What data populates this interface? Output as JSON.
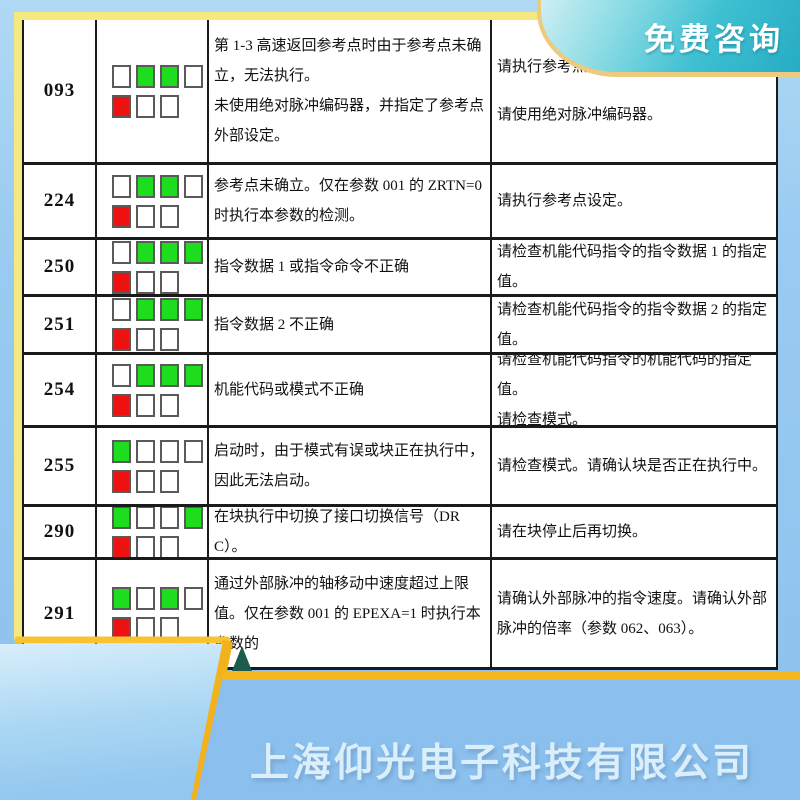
{
  "page": {
    "badge": {
      "label": "免费咨询"
    },
    "footer": {
      "company": "上海仰光电子科技有限公司"
    },
    "colors": {
      "led_green": "#1edc1e",
      "led_red": "#ee1111",
      "badge_teal": "#2fb4c9",
      "accent_gold": "#f5b71e",
      "frame_yellow": "#f3e97e",
      "background_blue": "#9acbf1",
      "triangle_teal": "#1c5b4d"
    }
  },
  "table": {
    "rows": [
      {
        "code": "093",
        "leds": {
          "top": [
            "off",
            "green",
            "green",
            "off"
          ],
          "bottom": [
            "red",
            "off",
            "off"
          ]
        },
        "desc": [
          "第 1-3 高速返回参考点时由于参考点未确立，无法执行。",
          "未使用绝对脉冲编码器，并指定了参考点外部设定。"
        ],
        "solution": [
          "请执行参考点设定。",
          "请使用绝对脉冲编码器。"
        ]
      },
      {
        "code": "224",
        "leds": {
          "top": [
            "off",
            "green",
            "green",
            "off"
          ],
          "bottom": [
            "red",
            "off",
            "off"
          ]
        },
        "desc": [
          "参考点未确立。仅在参数 001 的 ZRTN=0 时执行本参数的检测。"
        ],
        "solution": [
          "请执行参考点设定。"
        ]
      },
      {
        "code": "250",
        "leds": {
          "top": [
            "off",
            "green",
            "green",
            "green"
          ],
          "bottom": [
            "red",
            "off",
            "off"
          ]
        },
        "desc": [
          "指令数据 1 或指令命令不正确"
        ],
        "solution": [
          "请检查机能代码指令的指令数据 1 的指定值。"
        ]
      },
      {
        "code": "251",
        "leds": {
          "top": [
            "off",
            "green",
            "green",
            "green"
          ],
          "bottom": [
            "red",
            "off",
            "off"
          ]
        },
        "desc": [
          "指令数据 2 不正确"
        ],
        "solution": [
          "请检查机能代码指令的指令数据 2 的指定值。"
        ]
      },
      {
        "code": "254",
        "leds": {
          "top": [
            "off",
            "green",
            "green",
            "green"
          ],
          "bottom": [
            "red",
            "off",
            "off"
          ]
        },
        "desc": [
          "机能代码或模式不正确"
        ],
        "solution": [
          "请检查机能代码指令的机能代码的指定值。",
          "请检查模式。"
        ]
      },
      {
        "code": "255",
        "leds": {
          "top": [
            "green",
            "off",
            "off",
            "off"
          ],
          "bottom": [
            "red",
            "off",
            "off"
          ]
        },
        "desc": [
          "启动时，由于模式有误或块正在执行中，因此无法启动。"
        ],
        "solution": [
          "请检查模式。请确认块是否正在执行中。"
        ]
      },
      {
        "code": "290",
        "leds": {
          "top": [
            "green",
            "off",
            "off",
            "green"
          ],
          "bottom": [
            "red",
            "off",
            "off"
          ]
        },
        "desc": [
          "在块执行中切换了接口切换信号（DRC）。"
        ],
        "solution": [
          "请在块停止后再切换。"
        ]
      },
      {
        "code": "291",
        "leds": {
          "top": [
            "green",
            "off",
            "green",
            "off"
          ],
          "bottom": [
            "red",
            "off",
            "off"
          ]
        },
        "desc": [
          "通过外部脉冲的轴移动中速度超过上限值。仅在参数 001 的 EPEXA=1 时执行本参数的"
        ],
        "solution": [
          "请确认外部脉冲的指令速度。请确认外部脉冲的倍率（参数 062、063）。"
        ]
      }
    ]
  }
}
